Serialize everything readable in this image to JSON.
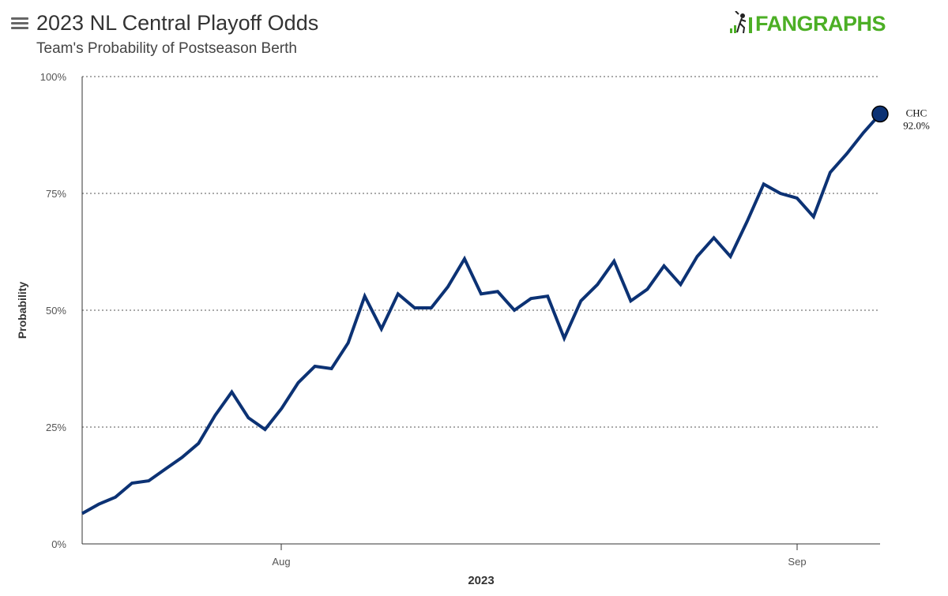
{
  "header": {
    "title": "2023 NL Central Playoff Odds",
    "subtitle": "Team's Probability of Postseason Berth",
    "logo_text": "FANGRAPHS",
    "menu_icon": "hamburger-menu-icon"
  },
  "colors": {
    "series": "#0c3274",
    "logo_green": "#4caf25",
    "grid": "#555555",
    "axis": "#333333"
  },
  "chart_data": {
    "type": "line",
    "title": "2023 NL Central Playoff Odds",
    "subtitle": "Team's Probability of Postseason Berth",
    "xlabel": "2023",
    "ylabel": "Probability",
    "x_ticks": [
      "Aug",
      "Sep"
    ],
    "y_ticks": [
      "0%",
      "25%",
      "50%",
      "75%",
      "100%"
    ],
    "ylim": [
      0,
      100
    ],
    "grid": "horizontal dotted",
    "series": [
      {
        "name": "CHC",
        "end_label": "92.0%",
        "values": [
          6.5,
          8.5,
          10,
          13,
          13.5,
          16,
          18.5,
          21.5,
          27.5,
          32.5,
          27,
          24.5,
          29,
          34.5,
          38,
          37.5,
          43,
          53,
          46,
          53.5,
          50.5,
          50.5,
          55,
          61,
          53.5,
          54,
          50,
          52.5,
          53,
          44,
          52,
          55.5,
          60.5,
          52,
          54.5,
          59.5,
          55.5,
          61.5,
          65.5,
          61.5,
          69,
          77,
          75,
          74,
          70,
          79.5,
          83.5,
          88,
          92.0
        ]
      }
    ]
  }
}
